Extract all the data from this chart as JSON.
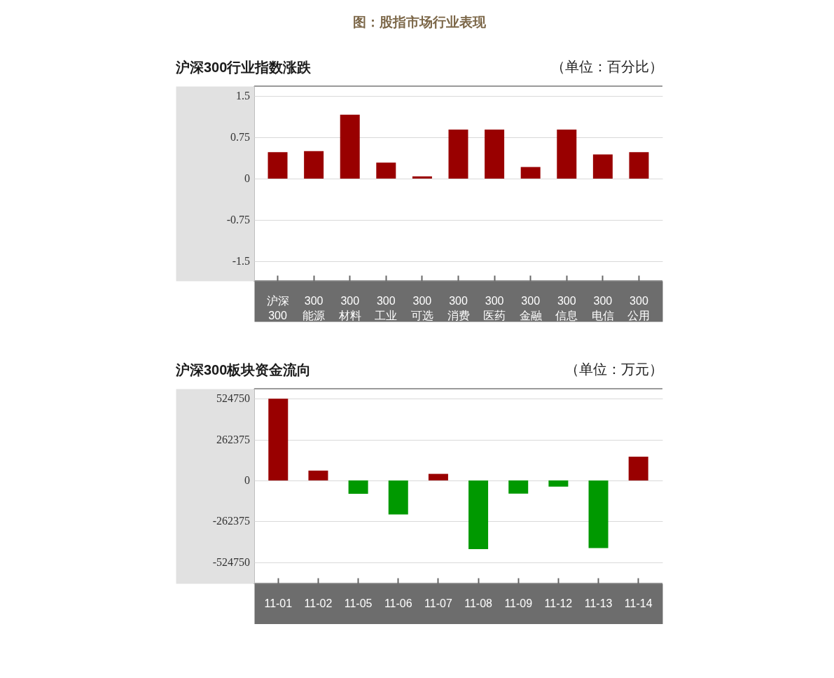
{
  "chart_data": [
    {
      "type": "bar",
      "title": "沪深300行业指数涨跌",
      "ylabel": "（单位：百分比）",
      "annotations": [
        "图：股指市场行业表现"
      ],
      "categories": [
        "沪深 300",
        "300 能源",
        "300 材料",
        "300 工业",
        "300 可选",
        "300 消费",
        "300 医药",
        "300 金融",
        "300 信息",
        "300 电信",
        "300 公用"
      ],
      "values": [
        0.48,
        0.5,
        1.16,
        0.29,
        0.04,
        0.89,
        0.89,
        0.21,
        0.89,
        0.44,
        0.48
      ],
      "color": "#990000",
      "ylim": [
        -1.86,
        1.68
      ],
      "yticks": [
        1.5,
        0.75,
        0,
        -0.75,
        -1.5
      ],
      "grid": "y"
    },
    {
      "type": "bar",
      "title": "沪深300板块资金流向",
      "ylabel": "（单位：万元）",
      "categories": [
        "11-01",
        "11-02",
        "11-05",
        "11-06",
        "11-07",
        "11-08",
        "11-09",
        "11-12",
        "11-13",
        "11-14"
      ],
      "values": [
        525000,
        63000,
        -86000,
        -219000,
        42000,
        -442000,
        -85000,
        -40000,
        -435000,
        153000
      ],
      "colors": [
        "#990000",
        "#990000",
        "#009900",
        "#009900",
        "#990000",
        "#009900",
        "#009900",
        "#009900",
        "#009900",
        "#990000"
      ],
      "ylim": [
        -662000,
        589000
      ],
      "yticks": [
        524750,
        262375,
        0,
        -262375,
        -524750
      ],
      "grid": "y"
    }
  ]
}
